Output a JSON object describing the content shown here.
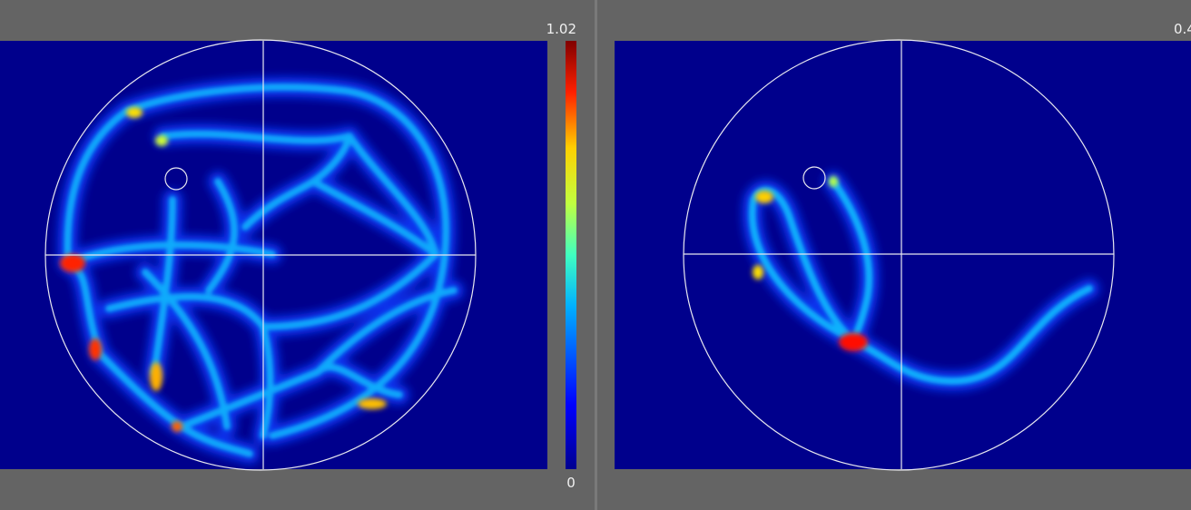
{
  "left_panel": {
    "colorbar": {
      "max_label": "1.02",
      "min_label": "0"
    }
  },
  "right_panel": {
    "colorbar": {
      "max_label": "0.4"
    }
  }
}
